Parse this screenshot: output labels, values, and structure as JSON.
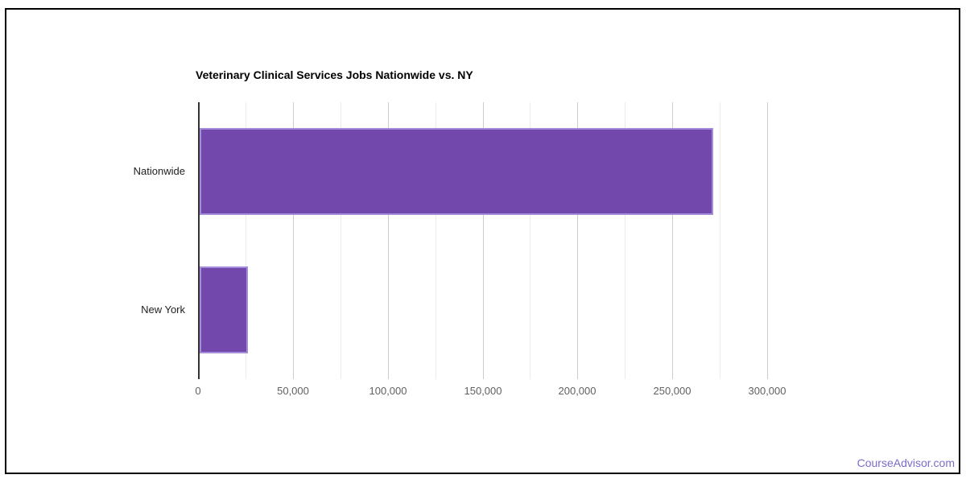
{
  "page": {
    "watermark": "CourseAdvisor.com",
    "watermark_color": "#7E6BCD",
    "background_color": "#FFFFFF",
    "frame_border_color": "#000000"
  },
  "chart_data": {
    "type": "bar",
    "orientation": "horizontal",
    "title": "Veterinary Clinical Services Jobs Nationwide vs. NY",
    "categories": [
      "Nationwide",
      "New York"
    ],
    "values": [
      270600,
      25600
    ],
    "xlabel": "",
    "ylabel": "",
    "xlim": [
      0,
      300000
    ],
    "x_tick_interval": 50000,
    "x_minor_tick_interval": 25000,
    "x_tick_labels": [
      "0",
      "50,000",
      "100,000",
      "150,000",
      "200,000",
      "250,000",
      "300,000"
    ],
    "grid": true,
    "legend": "none",
    "bar_color": "#7248AC",
    "bar_border_color": "#A48CD8",
    "major_grid_color": "#CCCCCC",
    "minor_grid_color": "#EBEBEB",
    "axis_line_color": "#333333",
    "tick_label_color": "#616161",
    "category_label_color": "#222222",
    "title_color": "#000000"
  }
}
